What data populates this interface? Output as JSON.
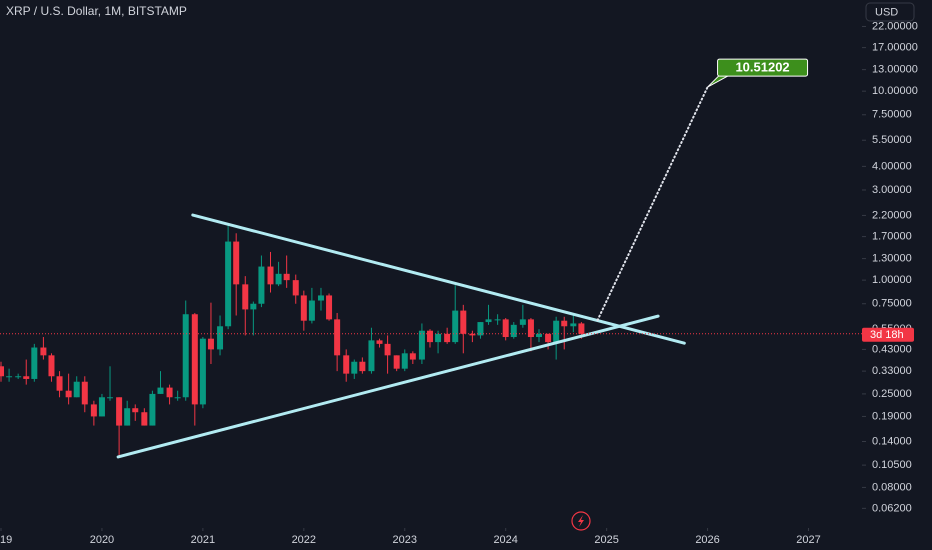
{
  "chart_data": {
    "type": "candlestick",
    "title": "XRP / U.S. Dollar, 1M, BITSTAMP",
    "currency": "USD",
    "countdown": "3d 18h",
    "log_scale": true,
    "up_color": "#089981",
    "down_color": "#f23645",
    "x": [
      2019.0,
      2019.08,
      2019.17,
      2019.25,
      2019.33,
      2019.42,
      2019.5,
      2019.58,
      2019.67,
      2019.75,
      2019.83,
      2019.92,
      2020.0,
      2020.08,
      2020.17,
      2020.25,
      2020.33,
      2020.42,
      2020.5,
      2020.58,
      2020.67,
      2020.75,
      2020.83,
      2020.92,
      2021.0,
      2021.08,
      2021.17,
      2021.25,
      2021.33,
      2021.42,
      2021.5,
      2021.58,
      2021.67,
      2021.75,
      2021.83,
      2021.92,
      2022.0,
      2022.08,
      2022.17,
      2022.25,
      2022.33,
      2022.42,
      2022.5,
      2022.58,
      2022.67,
      2022.75,
      2022.83,
      2022.92,
      2023.0,
      2023.08,
      2023.17,
      2023.25,
      2023.33,
      2023.42,
      2023.5,
      2023.58,
      2023.67,
      2023.75,
      2023.83,
      2023.92,
      2024.0,
      2024.08,
      2024.17,
      2024.25,
      2024.33,
      2024.42,
      2024.5,
      2024.58,
      2024.67,
      2024.75
    ],
    "open": [
      0.35,
      0.31,
      0.31,
      0.31,
      0.3,
      0.44,
      0.4,
      0.31,
      0.26,
      0.24,
      0.29,
      0.22,
      0.19,
      0.24,
      0.24,
      0.17,
      0.21,
      0.2,
      0.17,
      0.25,
      0.27,
      0.24,
      0.24,
      0.66,
      0.22,
      0.49,
      0.43,
      0.57,
      1.6,
      0.95,
      0.7,
      0.75,
      1.18,
      0.95,
      1.08,
      1.0,
      0.83,
      0.61,
      0.78,
      0.83,
      0.62,
      0.4,
      0.32,
      0.37,
      0.33,
      0.48,
      0.46,
      0.4,
      0.34,
      0.41,
      0.38,
      0.54,
      0.47,
      0.52,
      0.47,
      0.69,
      0.52,
      0.51,
      0.6,
      0.62,
      0.62,
      0.5,
      0.58,
      0.62,
      0.5,
      0.52,
      0.47,
      0.61,
      0.57,
      0.59
    ],
    "high": [
      0.37,
      0.34,
      0.32,
      0.38,
      0.46,
      0.5,
      0.41,
      0.33,
      0.32,
      0.31,
      0.31,
      0.23,
      0.25,
      0.35,
      0.24,
      0.23,
      0.22,
      0.21,
      0.26,
      0.33,
      0.28,
      0.26,
      0.78,
      0.67,
      0.5,
      0.76,
      0.65,
      1.96,
      1.77,
      1.05,
      0.77,
      1.35,
      1.41,
      1.25,
      1.35,
      1.07,
      0.88,
      0.91,
      0.91,
      0.85,
      0.67,
      0.43,
      0.38,
      0.39,
      0.56,
      0.49,
      0.51,
      0.4,
      0.43,
      0.42,
      0.59,
      0.55,
      0.54,
      0.56,
      0.94,
      0.74,
      0.54,
      0.6,
      0.74,
      0.66,
      0.63,
      0.6,
      0.74,
      0.63,
      0.55,
      0.52,
      0.64,
      0.64,
      0.66,
      0.6
    ],
    "low": [
      0.29,
      0.29,
      0.3,
      0.28,
      0.29,
      0.38,
      0.29,
      0.24,
      0.22,
      0.24,
      0.2,
      0.17,
      0.19,
      0.23,
      0.115,
      0.17,
      0.18,
      0.17,
      0.17,
      0.25,
      0.22,
      0.23,
      0.23,
      0.17,
      0.21,
      0.36,
      0.4,
      0.55,
      0.65,
      0.51,
      0.51,
      0.72,
      0.86,
      0.93,
      0.91,
      0.75,
      0.54,
      0.59,
      0.69,
      0.61,
      0.33,
      0.29,
      0.3,
      0.32,
      0.32,
      0.44,
      0.32,
      0.33,
      0.33,
      0.36,
      0.36,
      0.44,
      0.41,
      0.46,
      0.46,
      0.41,
      0.47,
      0.49,
      0.58,
      0.58,
      0.48,
      0.49,
      0.56,
      0.42,
      0.47,
      0.43,
      0.38,
      0.43,
      0.53,
      0.49
    ],
    "close": [
      0.31,
      0.31,
      0.31,
      0.3,
      0.44,
      0.4,
      0.31,
      0.26,
      0.24,
      0.29,
      0.22,
      0.19,
      0.24,
      0.24,
      0.17,
      0.21,
      0.2,
      0.17,
      0.25,
      0.27,
      0.24,
      0.24,
      0.66,
      0.22,
      0.49,
      0.43,
      0.57,
      1.6,
      0.95,
      0.7,
      0.75,
      1.18,
      0.95,
      1.08,
      1.0,
      0.83,
      0.61,
      0.78,
      0.83,
      0.62,
      0.4,
      0.32,
      0.37,
      0.33,
      0.48,
      0.46,
      0.4,
      0.34,
      0.41,
      0.38,
      0.54,
      0.47,
      0.52,
      0.47,
      0.69,
      0.52,
      0.51,
      0.6,
      0.62,
      0.62,
      0.5,
      0.58,
      0.62,
      0.5,
      0.52,
      0.47,
      0.61,
      0.57,
      0.59,
      0.52
    ],
    "xlim": [
      2018.99,
      2027.53
    ],
    "xticks": [
      {
        "value": 2019,
        "label": "19"
      },
      2020,
      2021,
      2022,
      2023,
      2024,
      2025,
      2026,
      2027
    ],
    "ylim": [
      0.05,
      30
    ],
    "yticks": [
      {
        "value": 22,
        "label": "22.00000"
      },
      {
        "value": 17,
        "label": "17.00000"
      },
      {
        "value": 13,
        "label": "13.00000"
      },
      {
        "value": 10,
        "label": "10.00000"
      },
      {
        "value": 7.5,
        "label": "7.50000"
      },
      {
        "value": 5.5,
        "label": "5.50000"
      },
      {
        "value": 4,
        "label": "4.00000"
      },
      {
        "value": 3,
        "label": "3.00000"
      },
      {
        "value": 2.2,
        "label": "2.20000"
      },
      {
        "value": 1.7,
        "label": "1.70000"
      },
      {
        "value": 1.3,
        "label": "1.30000"
      },
      {
        "value": 1,
        "label": "1.00000"
      },
      {
        "value": 0.75,
        "label": "0.75000"
      },
      {
        "value": 0.55,
        "label": "0.55000"
      },
      {
        "value": 0.43,
        "label": "0.43000"
      },
      {
        "value": 0.33,
        "label": "0.33000"
      },
      {
        "value": 0.25,
        "label": "0.25000"
      },
      {
        "value": 0.19,
        "label": "0.19000"
      },
      {
        "value": 0.14,
        "label": "0.14000"
      },
      {
        "value": 0.105,
        "label": "0.10500"
      },
      {
        "value": 0.08,
        "label": "0.08000"
      },
      {
        "value": 0.062,
        "label": "0.06200"
      }
    ],
    "trendlines": [
      {
        "x": [
          2020.9,
          2025.77
        ],
        "y": [
          2.21,
          0.464
        ],
        "color": "#b2ebf2"
      },
      {
        "x": [
          2020.16,
          2025.51
        ],
        "y": [
          0.116,
          0.645
        ],
        "color": "#b2ebf2"
      }
    ],
    "projection": {
      "label": "10.51202",
      "x": [
        2024.91,
        2026.0
      ],
      "y": [
        0.614,
        10.51202
      ],
      "color": "#e0e3eb",
      "label_color": "#3d8f1c"
    }
  }
}
